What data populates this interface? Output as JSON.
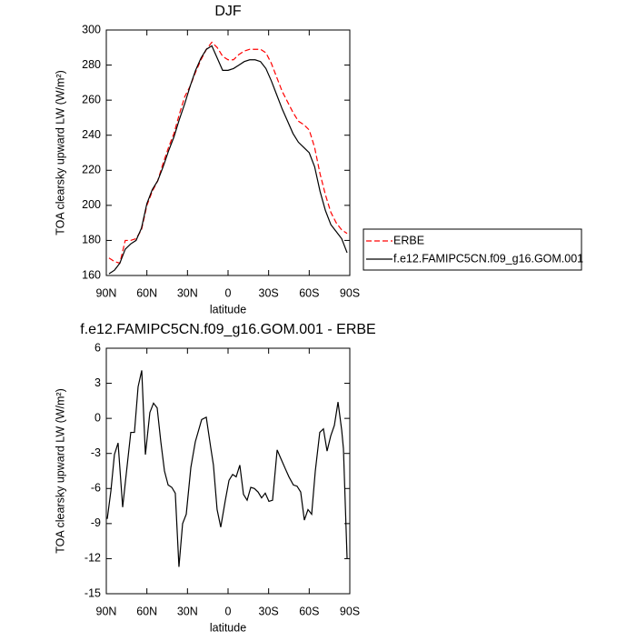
{
  "chart_data": [
    {
      "type": "line",
      "title": "DJF",
      "x_label": "latitude",
      "y_label": "TOA clearsky upward LW (W/m²)",
      "x": [
        88,
        84,
        80,
        76,
        72,
        68,
        64,
        60,
        56,
        52,
        48,
        44,
        40,
        36,
        32,
        28,
        24,
        20,
        16,
        12,
        8,
        4,
        0,
        -4,
        -8,
        -12,
        -16,
        -20,
        -24,
        -28,
        -32,
        -36,
        -40,
        -44,
        -48,
        -52,
        -56,
        -60,
        -64,
        -68,
        -72,
        -76,
        -80,
        -84,
        -88
      ],
      "series": [
        {
          "name": "ERBE",
          "color": "#ff0000",
          "dashed": true,
          "values": [
            170,
            168,
            167,
            180,
            180,
            181,
            186,
            200,
            208,
            214,
            224,
            233,
            241,
            252,
            262,
            268,
            276,
            283,
            289,
            293,
            290,
            285,
            283,
            283,
            286,
            288,
            289,
            289,
            289,
            287,
            281,
            273,
            265,
            259,
            253,
            248,
            246,
            243,
            233,
            218,
            206,
            196,
            190,
            186,
            184
          ]
        },
        {
          "name": "f.e12.FAMIPC5CN.f09_g16.GOM.001",
          "color": "#000000",
          "dashed": false,
          "values": [
            161,
            163,
            167,
            175,
            178,
            180,
            187,
            201,
            209,
            214,
            222,
            231,
            239,
            249,
            258,
            268,
            277,
            284,
            289,
            291,
            284,
            277,
            277,
            278,
            280,
            282,
            283,
            283,
            282,
            278,
            271,
            263,
            255,
            248,
            241,
            236,
            233,
            230,
            222,
            208,
            197,
            189,
            185,
            181,
            173
          ]
        }
      ],
      "xlim": [
        90,
        -90
      ],
      "xticks": [
        {
          "value": 90,
          "label": "90N"
        },
        {
          "value": 60,
          "label": "60N"
        },
        {
          "value": 30,
          "label": "30N"
        },
        0,
        {
          "value": -30,
          "label": "30S"
        },
        {
          "value": -60,
          "label": "60S"
        },
        {
          "value": -90,
          "label": "90S"
        }
      ],
      "ylim": [
        160,
        300
      ],
      "yticks": [
        160,
        180,
        200,
        220,
        240,
        260,
        280,
        300
      ],
      "legend": "right"
    },
    {
      "type": "line",
      "title": "f.e12.FAMIPC5CN.f09_g16.GOM.001 - ERBE",
      "x_label": "latitude",
      "y_label": "TOA clearsky upward LW (W/m²)",
      "x": [
        89.3,
        86.6,
        84.0,
        81.3,
        77.9,
        75.2,
        71.9,
        69.2,
        66.5,
        63.8,
        61.1,
        57.8,
        55.1,
        52.4,
        49.7,
        47.0,
        44.3,
        41.6,
        39.0,
        36.3,
        33.6,
        30.9,
        27.5,
        24.2,
        19.5,
        16.1,
        12.8,
        10.8,
        8.1,
        5.4,
        2.0,
        -0.7,
        -3.4,
        -6.0,
        -8.7,
        -11.4,
        -14.1,
        -16.8,
        -19.5,
        -22.2,
        -24.8,
        -27.5,
        -30.2,
        -32.9,
        -36.3,
        -38.9,
        -42.3,
        -45.0,
        -48.3,
        -51.0,
        -53.7,
        -56.4,
        -59.1,
        -61.8,
        -64.5,
        -67.8,
        -70.5,
        -73.2,
        -75.9,
        -78.6,
        -81.3,
        -84.0,
        -85.3,
        -88.0
      ],
      "values": [
        -8.6,
        -6.2,
        -3.1,
        -2.1,
        -7.6,
        -4.7,
        -1.2,
        -1.2,
        2.7,
        4.1,
        -3.1,
        0.5,
        1.3,
        0.9,
        -2.0,
        -4.5,
        -5.7,
        -5.9,
        -6.4,
        -12.7,
        -9.0,
        -8.2,
        -4.2,
        -2.0,
        -0.1,
        0.1,
        -2.5,
        -4.0,
        -7.8,
        -9.3,
        -7.0,
        -5.3,
        -4.8,
        -5.0,
        -4.0,
        -6.5,
        -7.0,
        -5.9,
        -6.0,
        -6.3,
        -6.8,
        -6.4,
        -7.1,
        -7.0,
        -2.7,
        -3.4,
        -4.3,
        -5.0,
        -5.7,
        -5.8,
        -6.3,
        -8.7,
        -7.8,
        -8.2,
        -4.5,
        -1.2,
        -0.9,
        -2.8,
        -1.5,
        -0.6,
        1.4,
        -1.0,
        -2.6,
        -12.0
      ],
      "color": "#000000",
      "xlim": [
        90,
        -90
      ],
      "xticks": [
        {
          "value": 90,
          "label": "90N"
        },
        {
          "value": 60,
          "label": "60N"
        },
        {
          "value": 30,
          "label": "30N"
        },
        0,
        {
          "value": -30,
          "label": "30S"
        },
        {
          "value": -60,
          "label": "60S"
        },
        {
          "value": -90,
          "label": "90S"
        }
      ],
      "ylim": [
        -15,
        6
      ],
      "yticks": [
        -15,
        -12,
        -9,
        -6,
        -3,
        0,
        3,
        6
      ]
    }
  ]
}
